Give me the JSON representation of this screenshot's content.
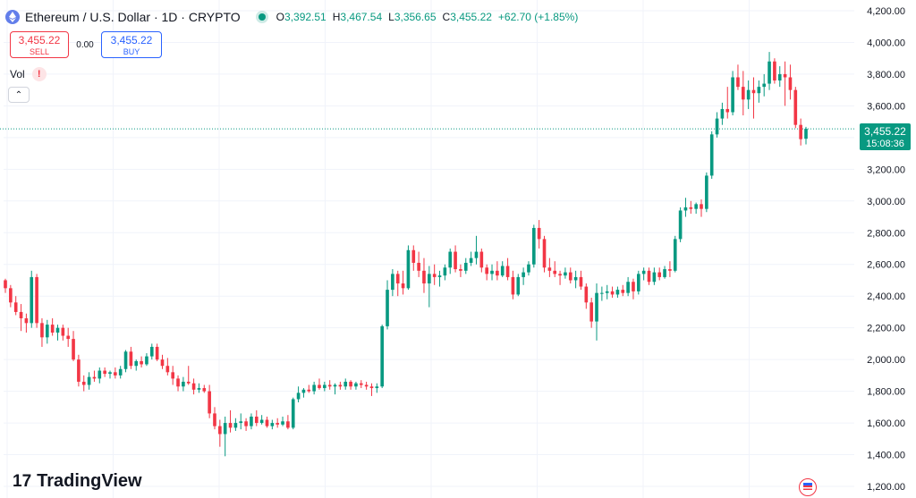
{
  "header": {
    "title": "Ethereum / U.S. Dollar · 1D · CRYPTO",
    "ohlc": [
      {
        "k": "O",
        "v": "3,392.51"
      },
      {
        "k": "H",
        "v": "3,467.54"
      },
      {
        "k": "L",
        "v": "3,356.65"
      },
      {
        "k": "C",
        "v": "3,455.22"
      }
    ],
    "change": "+62.70 (+1.85%)"
  },
  "trade": {
    "sell_price": "3,455.22",
    "sell_label": "SELL",
    "spread": "0.00",
    "buy_price": "3,455.22",
    "buy_label": "BUY"
  },
  "volume": {
    "label": "Vol",
    "warning": "!"
  },
  "price_tag": {
    "price": "3,455.22",
    "countdown": "15:08:36"
  },
  "branding": {
    "name": "TradingView"
  },
  "colors": {
    "up": "#089981",
    "down": "#f23645",
    "grid": "#f0f3fa",
    "axis_text": "#131722"
  },
  "chart_data": {
    "type": "candlestick",
    "symbol": "ETH/USD",
    "interval": "1D",
    "y_axis_position": "right",
    "ylim": [
      1175,
      4250
    ],
    "yticks": [
      1200,
      1400,
      1600,
      1800,
      2000,
      2200,
      2400,
      2600,
      2800,
      3000,
      3200,
      3400,
      3600,
      3800,
      4000,
      4200
    ],
    "ytick_labels": [
      "1,200.00",
      "1,400.00",
      "1,600.00",
      "1,800.00",
      "2,000.00",
      "2,200.00",
      "2,400.00",
      "2,600.00",
      "2,800.00",
      "3,000.00",
      "3,200.00",
      "3,400.00",
      "3,600.00",
      "3,800.00",
      "4,000.00",
      "4,200.00"
    ],
    "last_price": 3455.22,
    "candles": [
      [
        2500,
        2510,
        2420,
        2450
      ],
      [
        2450,
        2470,
        2330,
        2360
      ],
      [
        2360,
        2400,
        2280,
        2300
      ],
      [
        2300,
        2350,
        2180,
        2260
      ],
      [
        2260,
        2290,
        2170,
        2230
      ],
      [
        2230,
        2560,
        2200,
        2520
      ],
      [
        2520,
        2540,
        2200,
        2230
      ],
      [
        2230,
        2260,
        2080,
        2140
      ],
      [
        2140,
        2250,
        2100,
        2220
      ],
      [
        2220,
        2260,
        2150,
        2170
      ],
      [
        2170,
        2220,
        2120,
        2200
      ],
      [
        2200,
        2220,
        2120,
        2150
      ],
      [
        2150,
        2200,
        2080,
        2130
      ],
      [
        2130,
        2180,
        1990,
        2000
      ],
      [
        2000,
        2030,
        1830,
        1860
      ],
      [
        1860,
        1900,
        1800,
        1840
      ],
      [
        1840,
        1920,
        1810,
        1890
      ],
      [
        1890,
        1930,
        1860,
        1880
      ],
      [
        1880,
        1950,
        1850,
        1930
      ],
      [
        1930,
        1950,
        1890,
        1910
      ],
      [
        1910,
        1930,
        1880,
        1920
      ],
      [
        1920,
        1950,
        1880,
        1900
      ],
      [
        1900,
        1960,
        1880,
        1940
      ],
      [
        1940,
        2060,
        1920,
        2050
      ],
      [
        2050,
        2080,
        1940,
        1960
      ],
      [
        1960,
        2000,
        1930,
        1990
      ],
      [
        1990,
        2020,
        1950,
        1970
      ],
      [
        1970,
        2040,
        1960,
        2020
      ],
      [
        2020,
        2100,
        2000,
        2080
      ],
      [
        2080,
        2100,
        1990,
        2000
      ],
      [
        2000,
        2030,
        1940,
        1960
      ],
      [
        1960,
        2010,
        1900,
        1920
      ],
      [
        1920,
        1960,
        1840,
        1880
      ],
      [
        1880,
        1900,
        1800,
        1830
      ],
      [
        1830,
        1890,
        1800,
        1860
      ],
      [
        1860,
        1960,
        1840,
        1850
      ],
      [
        1850,
        1880,
        1780,
        1810
      ],
      [
        1810,
        1850,
        1790,
        1820
      ],
      [
        1820,
        1840,
        1790,
        1800
      ],
      [
        1800,
        1840,
        1630,
        1660
      ],
      [
        1660,
        1700,
        1560,
        1580
      ],
      [
        1580,
        1620,
        1450,
        1530
      ],
      [
        1530,
        1640,
        1390,
        1600
      ],
      [
        1600,
        1680,
        1540,
        1570
      ],
      [
        1570,
        1630,
        1550,
        1600
      ],
      [
        1600,
        1660,
        1560,
        1610
      ],
      [
        1610,
        1630,
        1550,
        1580
      ],
      [
        1580,
        1660,
        1560,
        1640
      ],
      [
        1640,
        1680,
        1580,
        1600
      ],
      [
        1600,
        1650,
        1590,
        1620
      ],
      [
        1620,
        1640,
        1570,
        1580
      ],
      [
        1580,
        1620,
        1560,
        1600
      ],
      [
        1600,
        1630,
        1570,
        1590
      ],
      [
        1590,
        1640,
        1580,
        1610
      ],
      [
        1610,
        1650,
        1560,
        1570
      ],
      [
        1570,
        1760,
        1560,
        1750
      ],
      [
        1750,
        1830,
        1730,
        1790
      ],
      [
        1790,
        1820,
        1760,
        1810
      ],
      [
        1810,
        1840,
        1790,
        1800
      ],
      [
        1800,
        1860,
        1780,
        1840
      ],
      [
        1840,
        1880,
        1810,
        1820
      ],
      [
        1820,
        1860,
        1800,
        1840
      ],
      [
        1840,
        1870,
        1810,
        1830
      ],
      [
        1830,
        1850,
        1780,
        1840
      ],
      [
        1840,
        1860,
        1810,
        1830
      ],
      [
        1830,
        1880,
        1810,
        1860
      ],
      [
        1860,
        1870,
        1810,
        1830
      ],
      [
        1830,
        1860,
        1810,
        1850
      ],
      [
        1850,
        1870,
        1820,
        1840
      ],
      [
        1840,
        1860,
        1810,
        1830
      ],
      [
        1830,
        1850,
        1770,
        1820
      ],
      [
        1820,
        1850,
        1790,
        1830
      ],
      [
        1830,
        2220,
        1820,
        2210
      ],
      [
        2210,
        2500,
        2190,
        2440
      ],
      [
        2440,
        2570,
        2400,
        2540
      ],
      [
        2540,
        2560,
        2400,
        2480
      ],
      [
        2480,
        2560,
        2410,
        2450
      ],
      [
        2450,
        2720,
        2440,
        2690
      ],
      [
        2690,
        2720,
        2560,
        2610
      ],
      [
        2610,
        2680,
        2520,
        2560
      ],
      [
        2560,
        2640,
        2420,
        2480
      ],
      [
        2480,
        2590,
        2330,
        2540
      ],
      [
        2540,
        2600,
        2470,
        2520
      ],
      [
        2520,
        2560,
        2460,
        2530
      ],
      [
        2530,
        2600,
        2500,
        2580
      ],
      [
        2580,
        2700,
        2540,
        2680
      ],
      [
        2680,
        2720,
        2550,
        2570
      ],
      [
        2570,
        2600,
        2520,
        2560
      ],
      [
        2560,
        2640,
        2540,
        2610
      ],
      [
        2610,
        2680,
        2590,
        2640
      ],
      [
        2640,
        2780,
        2600,
        2680
      ],
      [
        2680,
        2700,
        2550,
        2580
      ],
      [
        2580,
        2600,
        2500,
        2540
      ],
      [
        2540,
        2600,
        2500,
        2560
      ],
      [
        2560,
        2620,
        2500,
        2530
      ],
      [
        2530,
        2620,
        2520,
        2590
      ],
      [
        2590,
        2640,
        2500,
        2520
      ],
      [
        2520,
        2560,
        2380,
        2410
      ],
      [
        2410,
        2540,
        2400,
        2520
      ],
      [
        2520,
        2580,
        2470,
        2550
      ],
      [
        2550,
        2620,
        2530,
        2600
      ],
      [
        2600,
        2850,
        2580,
        2830
      ],
      [
        2830,
        2880,
        2700,
        2760
      ],
      [
        2760,
        2780,
        2550,
        2580
      ],
      [
        2580,
        2640,
        2520,
        2560
      ],
      [
        2560,
        2620,
        2520,
        2540
      ],
      [
        2540,
        2560,
        2470,
        2530
      ],
      [
        2530,
        2580,
        2510,
        2550
      ],
      [
        2550,
        2580,
        2480,
        2500
      ],
      [
        2500,
        2560,
        2450,
        2520
      ],
      [
        2520,
        2560,
        2440,
        2460
      ],
      [
        2460,
        2480,
        2320,
        2360
      ],
      [
        2360,
        2390,
        2200,
        2240
      ],
      [
        2240,
        2480,
        2120,
        2420
      ],
      [
        2420,
        2460,
        2370,
        2420
      ],
      [
        2420,
        2470,
        2380,
        2430
      ],
      [
        2430,
        2460,
        2390,
        2410
      ],
      [
        2410,
        2460,
        2390,
        2440
      ],
      [
        2440,
        2470,
        2400,
        2420
      ],
      [
        2420,
        2520,
        2400,
        2490
      ],
      [
        2490,
        2510,
        2380,
        2430
      ],
      [
        2430,
        2560,
        2410,
        2540
      ],
      [
        2540,
        2580,
        2500,
        2560
      ],
      [
        2560,
        2580,
        2470,
        2490
      ],
      [
        2490,
        2580,
        2470,
        2550
      ],
      [
        2550,
        2580,
        2500,
        2520
      ],
      [
        2520,
        2590,
        2510,
        2570
      ],
      [
        2570,
        2620,
        2520,
        2560
      ],
      [
        2560,
        2780,
        2550,
        2760
      ],
      [
        2760,
        2960,
        2740,
        2940
      ],
      [
        2940,
        3020,
        2900,
        2960
      ],
      [
        2960,
        3000,
        2920,
        2950
      ],
      [
        2950,
        2990,
        2920,
        2980
      ],
      [
        2980,
        3010,
        2900,
        2950
      ],
      [
        2950,
        3180,
        2930,
        3160
      ],
      [
        3160,
        3440,
        3140,
        3420
      ],
      [
        3420,
        3560,
        3400,
        3520
      ],
      [
        3520,
        3620,
        3480,
        3580
      ],
      [
        3580,
        3720,
        3520,
        3560
      ],
      [
        3560,
        3820,
        3540,
        3780
      ],
      [
        3780,
        3860,
        3700,
        3720
      ],
      [
        3720,
        3820,
        3540,
        3640
      ],
      [
        3640,
        3760,
        3580,
        3700
      ],
      [
        3700,
        3780,
        3520,
        3680
      ],
      [
        3680,
        3760,
        3620,
        3720
      ],
      [
        3720,
        3800,
        3660,
        3740
      ],
      [
        3740,
        3940,
        3700,
        3880
      ],
      [
        3880,
        3900,
        3740,
        3760
      ],
      [
        3760,
        3850,
        3720,
        3800
      ],
      [
        3800,
        3880,
        3600,
        3780
      ],
      [
        3780,
        3860,
        3640,
        3700
      ],
      [
        3700,
        3720,
        3460,
        3480
      ],
      [
        3480,
        3520,
        3350,
        3390
      ],
      [
        3392.51,
        3467.54,
        3356.65,
        3455.22
      ]
    ]
  }
}
